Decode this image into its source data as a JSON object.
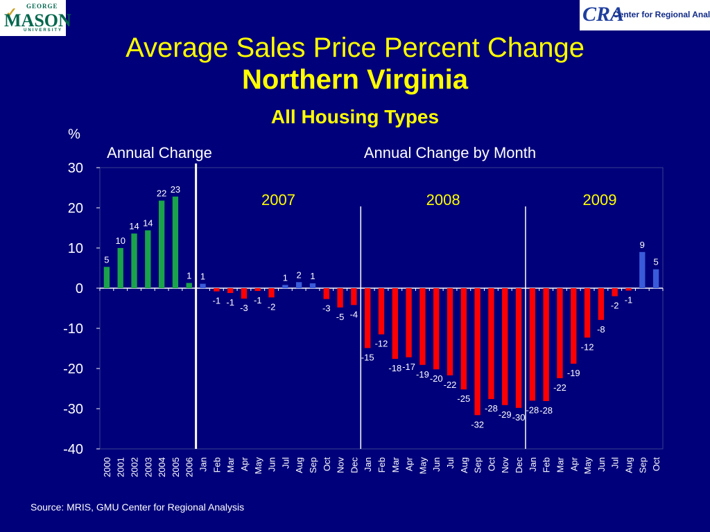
{
  "logos": {
    "left": {
      "top_text": "GEORGE",
      "main_text": "MASON",
      "bottom_text": "UNIVERSITY"
    },
    "right": {
      "abbr": "CRA",
      "name": "Center for Regional Analysis"
    }
  },
  "header": {
    "title_line1": "Average Sales Price Percent Change",
    "title_line2": "Northern Virginia",
    "subtitle": "All Housing Types"
  },
  "footer": {
    "source": "Source: MRIS, GMU Center for Regional Analysis"
  },
  "colors": {
    "background": "#00007a",
    "title": "#ffff00",
    "annual_bar": "#1aa34a",
    "positive_month_bar": "#3a5bd9",
    "negative_month_bar": "#ff0000",
    "plot_text": "#ffffff",
    "divider": "#ffffff"
  },
  "chart_data": {
    "type": "bar",
    "ylabel": "%",
    "ylim": [
      -40,
      30
    ],
    "yticks": [
      30,
      20,
      10,
      0,
      -10,
      -20,
      -30,
      -40
    ],
    "section_labels": [
      "Annual Change",
      "Annual Change by Month"
    ],
    "year_group_labels": [
      "2007",
      "2008",
      "2009"
    ],
    "grid": false,
    "legend": "none",
    "categories": [
      "2000",
      "2001",
      "2002",
      "2003",
      "2004",
      "2005",
      "2006",
      "Jan",
      "Feb",
      "Mar",
      "Apr",
      "May",
      "Jun",
      "Jul",
      "Aug",
      "Sep",
      "Oct",
      "Nov",
      "Dec",
      "Jan",
      "Feb",
      "Mar",
      "Apr",
      "May",
      "Jun",
      "Jul",
      "Aug",
      "Sep",
      "Oct",
      "Nov",
      "Dec",
      "Jan",
      "Feb",
      "Mar",
      "Apr",
      "May",
      "Jun",
      "Jul",
      "Aug",
      "Sep",
      "Oct"
    ],
    "values": [
      5.3,
      10,
      13.6,
      14.4,
      21.8,
      22.8,
      1.3,
      1.1,
      -0.8,
      -1.2,
      -2.6,
      -0.7,
      -2.3,
      0.8,
      1.5,
      1.2,
      -2.7,
      -4.8,
      -4.2,
      -14.9,
      -11.5,
      -17.6,
      -17.2,
      -19.1,
      -20.2,
      -21.7,
      -25.2,
      -31.6,
      -27.6,
      -29.1,
      -29.8,
      -28.0,
      -28.1,
      -22.4,
      -18.8,
      -12.3,
      -7.9,
      -2.0,
      -0.6,
      9.0,
      4.7
    ],
    "data_labels": [
      "5",
      "10",
      "14",
      "14",
      "22",
      "23",
      "1",
      "1",
      "-1",
      "-1",
      "-3",
      "-1",
      "-2",
      "1",
      "2",
      "1",
      "-3",
      "-5",
      "-4",
      "-15",
      "-12",
      "-18",
      "-17",
      "-19",
      "-20",
      "-22",
      "-25",
      "-32",
      "-28",
      "-29",
      "-30",
      "-28",
      "-28",
      "-22",
      "-19",
      "-12",
      "-8",
      "-2",
      "-1",
      "9",
      "5"
    ]
  }
}
